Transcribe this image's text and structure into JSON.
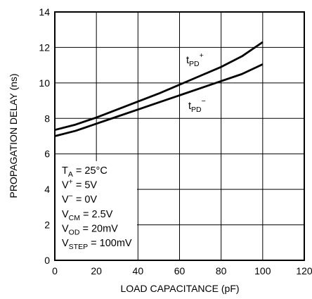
{
  "chart_data": {
    "type": "line",
    "title": "",
    "xlabel": "LOAD CAPACITANCE (pF)",
    "ylabel": "PROPAGATION DELAY (ns)",
    "xlim": [
      0,
      120
    ],
    "ylim": [
      0,
      14
    ],
    "xticks": [
      "0",
      "20",
      "40",
      "60",
      "80",
      "100",
      "120"
    ],
    "yticks": [
      "0",
      "2",
      "4",
      "6",
      "8",
      "10",
      "12",
      "14"
    ],
    "grid": true,
    "series": [
      {
        "name": "t_PD+",
        "label": {
          "base": "t",
          "sub": "PD",
          "sup": "+"
        },
        "x": [
          0,
          10,
          20,
          30,
          40,
          50,
          60,
          70,
          80,
          90,
          100
        ],
        "y": [
          7.35,
          7.65,
          8.05,
          8.5,
          8.95,
          9.4,
          9.9,
          10.4,
          10.9,
          11.5,
          12.3
        ]
      },
      {
        "name": "t_PD−",
        "label": {
          "base": "t",
          "sub": "PD",
          "sup": "−"
        },
        "x": [
          0,
          10,
          20,
          30,
          40,
          50,
          60,
          70,
          80,
          90,
          100
        ],
        "y": [
          7.0,
          7.3,
          7.7,
          8.1,
          8.5,
          8.9,
          9.3,
          9.7,
          10.1,
          10.5,
          11.05
        ]
      }
    ],
    "conditions": [
      {
        "base": "T",
        "sub": "A",
        "sup": "",
        "rest": " = 25°C"
      },
      {
        "base": "V",
        "sub": "",
        "sup": "+",
        "rest": " = 5V"
      },
      {
        "base": "V",
        "sub": "",
        "sup": "−",
        "rest": " = 0V"
      },
      {
        "base": "V",
        "sub": "CM",
        "sup": "",
        "rest": " = 2.5V"
      },
      {
        "base": "V",
        "sub": "OD",
        "sup": "",
        "rest": " = 20mV"
      },
      {
        "base": "V",
        "sub": "STEP",
        "sup": "",
        "rest": " = 100mV"
      }
    ]
  }
}
